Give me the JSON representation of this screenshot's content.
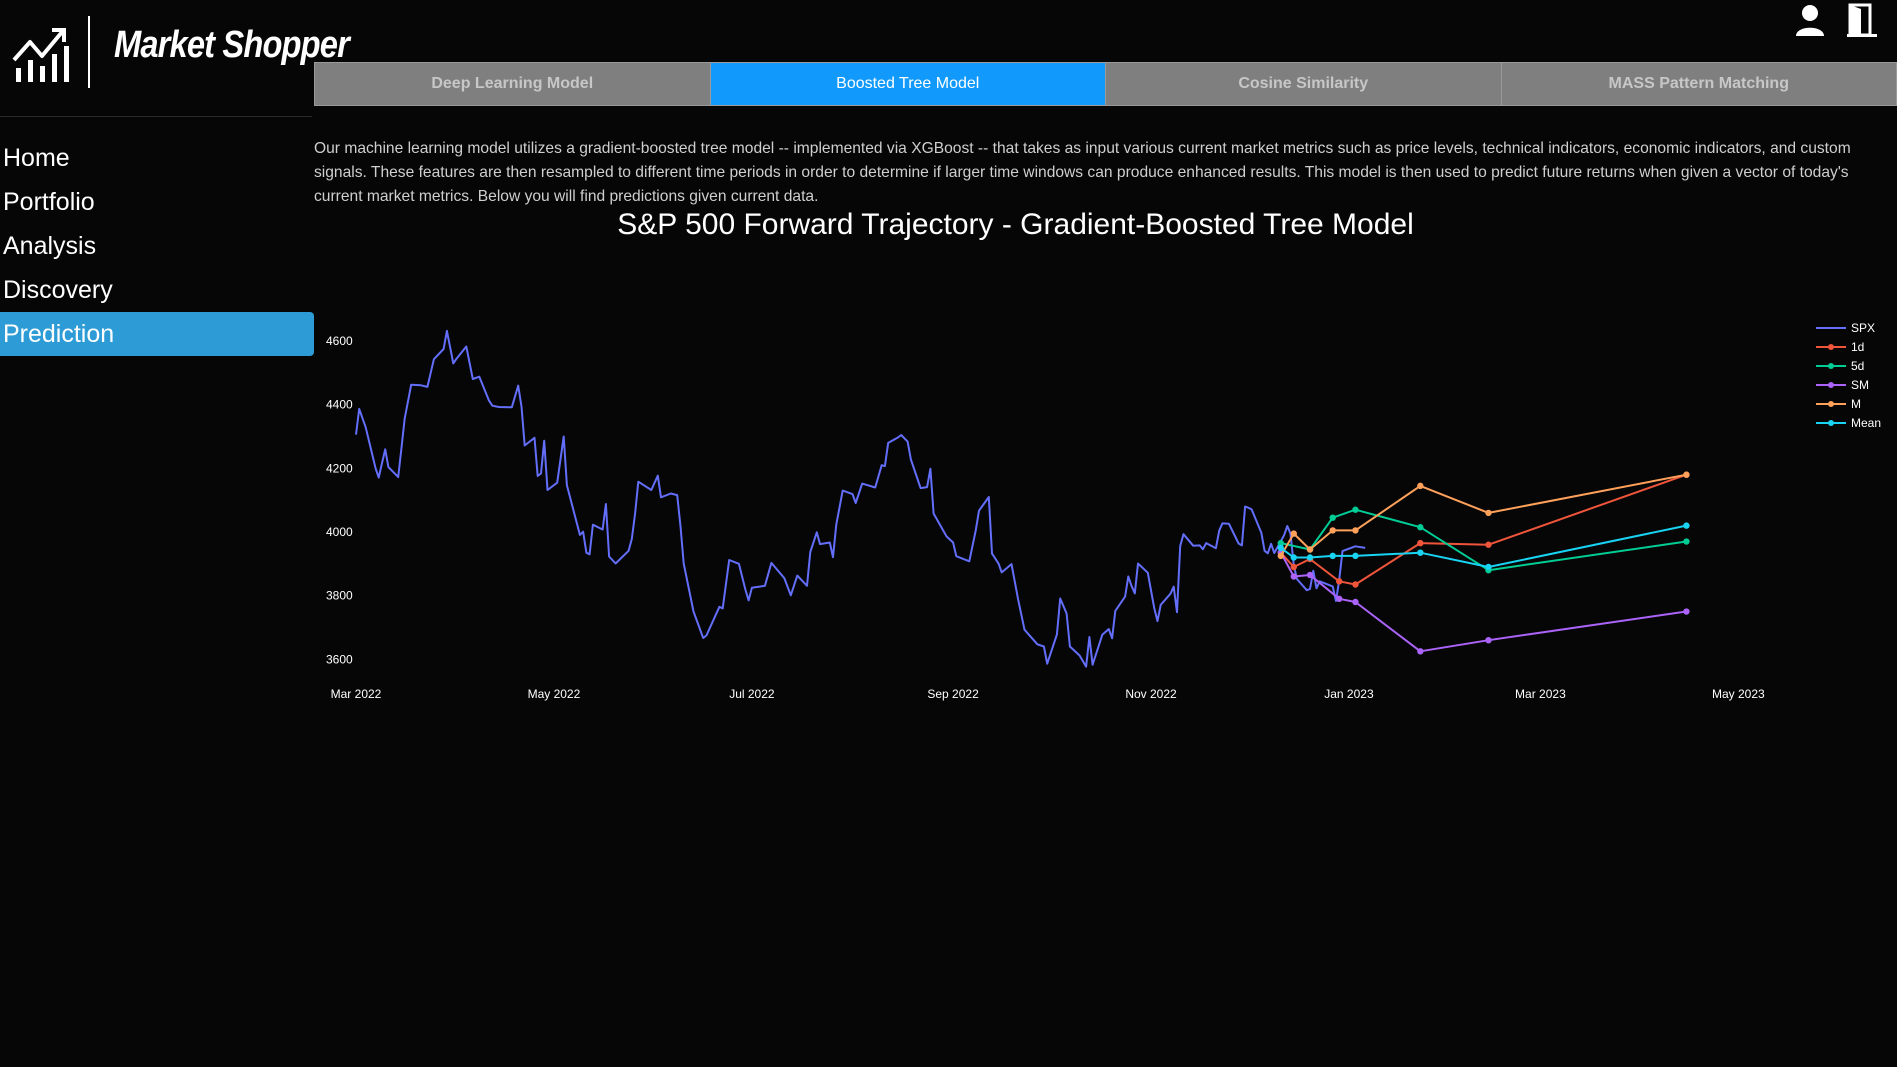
{
  "brand": {
    "name": "Market Shopper",
    "logo_icon": "growth-chart-icon"
  },
  "header_icons": [
    {
      "name": "user-icon"
    },
    {
      "name": "logout-door-icon"
    }
  ],
  "sidebar": {
    "items": [
      {
        "label": "Home",
        "active": false
      },
      {
        "label": "Portfolio",
        "active": false
      },
      {
        "label": "Analysis",
        "active": false
      },
      {
        "label": "Discovery",
        "active": false
      },
      {
        "label": "Prediction",
        "active": true
      }
    ]
  },
  "tabs": [
    {
      "label": "Deep Learning Model",
      "active": false
    },
    {
      "label": "Boosted Tree Model",
      "active": true
    },
    {
      "label": "Cosine Similarity",
      "active": false
    },
    {
      "label": "MASS Pattern Matching",
      "active": false
    }
  ],
  "description": "Our machine learning model utilizes a gradient-boosted tree model -- implemented via XGBoost -- that takes as input various current market metrics such as price levels, technical indicators, economic indicators, and custom signals. These features are then resampled to different time periods in order to determine if larger time windows can produce enhanced results. This model is then used to predict future returns when given a vector of today's current market metrics. Below you will find predictions given current data.",
  "colors": {
    "accent": "#2c9bd6",
    "tab_active": "#119afc",
    "tab_inactive": "#7f7f7f",
    "background": "#060606"
  },
  "chart_data": {
    "type": "line",
    "title": "S&P 500 Forward Trajectory - Gradient-Boosted Tree Model",
    "xlabel": "",
    "ylabel": "",
    "xlim": [
      "2022-03-01",
      "2023-05-20"
    ],
    "ylim": [
      3560,
      4660
    ],
    "x_ticks": [
      {
        "date": "2022-03-01",
        "label": "Mar 2022"
      },
      {
        "date": "2022-05-01",
        "label": "May 2022"
      },
      {
        "date": "2022-07-01",
        "label": "Jul 2022"
      },
      {
        "date": "2022-09-01",
        "label": "Sep 2022"
      },
      {
        "date": "2022-11-01",
        "label": "Nov 2022"
      },
      {
        "date": "2023-01-01",
        "label": "Jan 2023"
      },
      {
        "date": "2023-03-01",
        "label": "Mar 2023"
      },
      {
        "date": "2023-05-01",
        "label": "May 2023"
      }
    ],
    "y_ticks": [
      3600,
      3800,
      4000,
      4200,
      4400,
      4600
    ],
    "grid": false,
    "legend_position": "right",
    "series": [
      {
        "name": "SPX",
        "color": "#636efa",
        "markers": false,
        "points": [
          [
            "2022-03-01",
            4306
          ],
          [
            "2022-03-02",
            4387
          ],
          [
            "2022-03-04",
            4329
          ],
          [
            "2022-03-07",
            4201
          ],
          [
            "2022-03-08",
            4171
          ],
          [
            "2022-03-10",
            4260
          ],
          [
            "2022-03-11",
            4204
          ],
          [
            "2022-03-14",
            4173
          ],
          [
            "2022-03-15",
            4262
          ],
          [
            "2022-03-16",
            4357
          ],
          [
            "2022-03-18",
            4463
          ],
          [
            "2022-03-21",
            4461
          ],
          [
            "2022-03-23",
            4456
          ],
          [
            "2022-03-25",
            4543
          ],
          [
            "2022-03-28",
            4575
          ],
          [
            "2022-03-29",
            4632
          ],
          [
            "2022-03-31",
            4530
          ],
          [
            "2022-04-01",
            4545
          ],
          [
            "2022-04-04",
            4583
          ],
          [
            "2022-04-06",
            4481
          ],
          [
            "2022-04-08",
            4488
          ],
          [
            "2022-04-11",
            4413
          ],
          [
            "2022-04-12",
            4397
          ],
          [
            "2022-04-14",
            4393
          ],
          [
            "2022-04-18",
            4392
          ],
          [
            "2022-04-20",
            4460
          ],
          [
            "2022-04-21",
            4394
          ],
          [
            "2022-04-22",
            4272
          ],
          [
            "2022-04-25",
            4296
          ],
          [
            "2022-04-26",
            4176
          ],
          [
            "2022-04-27",
            4184
          ],
          [
            "2022-04-28",
            4287
          ],
          [
            "2022-04-29",
            4132
          ],
          [
            "2022-05-02",
            4155
          ],
          [
            "2022-05-04",
            4300
          ],
          [
            "2022-05-05",
            4147
          ],
          [
            "2022-05-09",
            3991
          ],
          [
            "2022-05-10",
            4001
          ],
          [
            "2022-05-11",
            3935
          ],
          [
            "2022-05-12",
            3930
          ],
          [
            "2022-05-13",
            4023
          ],
          [
            "2022-05-16",
            4008
          ],
          [
            "2022-05-17",
            4088
          ],
          [
            "2022-05-18",
            3923
          ],
          [
            "2022-05-20",
            3901
          ],
          [
            "2022-05-24",
            3941
          ],
          [
            "2022-05-25",
            3978
          ],
          [
            "2022-05-26",
            4058
          ],
          [
            "2022-05-27",
            4158
          ],
          [
            "2022-05-31",
            4132
          ],
          [
            "2022-06-02",
            4177
          ],
          [
            "2022-06-03",
            4109
          ],
          [
            "2022-06-06",
            4121
          ],
          [
            "2022-06-08",
            4116
          ],
          [
            "2022-06-09",
            4018
          ],
          [
            "2022-06-10",
            3901
          ],
          [
            "2022-06-13",
            3750
          ],
          [
            "2022-06-16",
            3667
          ],
          [
            "2022-06-17",
            3675
          ],
          [
            "2022-06-21",
            3765
          ],
          [
            "2022-06-22",
            3760
          ],
          [
            "2022-06-24",
            3912
          ],
          [
            "2022-06-27",
            3900
          ],
          [
            "2022-06-29",
            3819
          ],
          [
            "2022-06-30",
            3785
          ],
          [
            "2022-07-01",
            3825
          ],
          [
            "2022-07-05",
            3831
          ],
          [
            "2022-07-07",
            3903
          ],
          [
            "2022-07-11",
            3855
          ],
          [
            "2022-07-13",
            3801
          ],
          [
            "2022-07-15",
            3863
          ],
          [
            "2022-07-18",
            3831
          ],
          [
            "2022-07-19",
            3937
          ],
          [
            "2022-07-21",
            3999
          ],
          [
            "2022-07-22",
            3962
          ],
          [
            "2022-07-25",
            3967
          ],
          [
            "2022-07-26",
            3921
          ],
          [
            "2022-07-27",
            4024
          ],
          [
            "2022-07-29",
            4130
          ],
          [
            "2022-08-01",
            4119
          ],
          [
            "2022-08-02",
            4091
          ],
          [
            "2022-08-04",
            4152
          ],
          [
            "2022-08-08",
            4140
          ],
          [
            "2022-08-10",
            4210
          ],
          [
            "2022-08-11",
            4207
          ],
          [
            "2022-08-12",
            4280
          ],
          [
            "2022-08-15",
            4297
          ],
          [
            "2022-08-16",
            4305
          ],
          [
            "2022-08-18",
            4284
          ],
          [
            "2022-08-19",
            4228
          ],
          [
            "2022-08-22",
            4138
          ],
          [
            "2022-08-24",
            4141
          ],
          [
            "2022-08-25",
            4199
          ],
          [
            "2022-08-26",
            4058
          ],
          [
            "2022-08-30",
            3986
          ],
          [
            "2022-09-01",
            3967
          ],
          [
            "2022-09-02",
            3924
          ],
          [
            "2022-09-06",
            3908
          ],
          [
            "2022-09-08",
            4006
          ],
          [
            "2022-09-09",
            4067
          ],
          [
            "2022-09-12",
            4110
          ],
          [
            "2022-09-13",
            3932
          ],
          [
            "2022-09-15",
            3901
          ],
          [
            "2022-09-16",
            3873
          ],
          [
            "2022-09-19",
            3899
          ],
          [
            "2022-09-21",
            3790
          ],
          [
            "2022-09-23",
            3693
          ],
          [
            "2022-09-27",
            3647
          ],
          [
            "2022-09-29",
            3640
          ],
          [
            "2022-09-30",
            3586
          ],
          [
            "2022-10-03",
            3678
          ],
          [
            "2022-10-04",
            3791
          ],
          [
            "2022-10-06",
            3744
          ],
          [
            "2022-10-07",
            3640
          ],
          [
            "2022-10-10",
            3612
          ],
          [
            "2022-10-12",
            3577
          ],
          [
            "2022-10-13",
            3670
          ],
          [
            "2022-10-14",
            3583
          ],
          [
            "2022-10-17",
            3677
          ],
          [
            "2022-10-19",
            3695
          ],
          [
            "2022-10-20",
            3666
          ],
          [
            "2022-10-21",
            3752
          ],
          [
            "2022-10-24",
            3797
          ],
          [
            "2022-10-25",
            3860
          ],
          [
            "2022-10-26",
            3831
          ],
          [
            "2022-10-27",
            3807
          ],
          [
            "2022-10-28",
            3901
          ],
          [
            "2022-10-31",
            3872
          ],
          [
            "2022-11-02",
            3760
          ],
          [
            "2022-11-03",
            3720
          ],
          [
            "2022-11-04",
            3771
          ],
          [
            "2022-11-07",
            3806
          ],
          [
            "2022-11-08",
            3828
          ],
          [
            "2022-11-09",
            3748
          ],
          [
            "2022-11-10",
            3956
          ],
          [
            "2022-11-11",
            3993
          ],
          [
            "2022-11-14",
            3957
          ],
          [
            "2022-11-16",
            3958
          ],
          [
            "2022-11-17",
            3946
          ],
          [
            "2022-11-18",
            3965
          ],
          [
            "2022-11-21",
            3949
          ],
          [
            "2022-11-22",
            4004
          ],
          [
            "2022-11-23",
            4027
          ],
          [
            "2022-11-25",
            4026
          ],
          [
            "2022-11-28",
            3964
          ],
          [
            "2022-11-29",
            3958
          ],
          [
            "2022-11-30",
            4080
          ],
          [
            "2022-12-01",
            4076
          ],
          [
            "2022-12-02",
            4071
          ],
          [
            "2022-12-05",
            3998
          ],
          [
            "2022-12-06",
            3941
          ],
          [
            "2022-12-07",
            3933
          ],
          [
            "2022-12-08",
            3963
          ],
          [
            "2022-12-09",
            3934
          ],
          [
            "2022-12-12",
            3990
          ],
          [
            "2022-12-13",
            4019
          ],
          [
            "2022-12-14",
            3995
          ],
          [
            "2022-12-15",
            3895
          ],
          [
            "2022-12-16",
            3852
          ],
          [
            "2022-12-19",
            3817
          ],
          [
            "2022-12-20",
            3821
          ],
          [
            "2022-12-21",
            3878
          ],
          [
            "2022-12-22",
            3823
          ],
          [
            "2022-12-23",
            3845
          ],
          [
            "2022-12-27",
            3829
          ],
          [
            "2022-12-28",
            3783
          ],
          [
            "2022-12-29",
            3849
          ],
          [
            "2022-12-30",
            3940
          ],
          [
            "2023-01-03",
            3955
          ],
          [
            "2023-01-06",
            3950
          ]
        ]
      },
      {
        "name": "1d",
        "color": "#ef553b",
        "markers": true,
        "points": [
          [
            "2022-12-11",
            3935
          ],
          [
            "2022-12-15",
            3890
          ],
          [
            "2022-12-20",
            3915
          ],
          [
            "2022-12-29",
            3845
          ],
          [
            "2023-01-03",
            3835
          ],
          [
            "2023-01-23",
            3965
          ],
          [
            "2023-02-13",
            3960
          ],
          [
            "2023-04-15",
            4180
          ]
        ]
      },
      {
        "name": "5d",
        "color": "#00cc96",
        "markers": true,
        "points": [
          [
            "2022-12-11",
            3965
          ],
          [
            "2022-12-20",
            3945
          ],
          [
            "2022-12-27",
            4045
          ],
          [
            "2023-01-03",
            4070
          ],
          [
            "2023-01-23",
            4015
          ],
          [
            "2023-02-13",
            3880
          ],
          [
            "2023-04-15",
            3970
          ]
        ]
      },
      {
        "name": "SM",
        "color": "#ab63fa",
        "markers": true,
        "points": [
          [
            "2022-12-11",
            3935
          ],
          [
            "2022-12-15",
            3860
          ],
          [
            "2022-12-20",
            3865
          ],
          [
            "2022-12-29",
            3790
          ],
          [
            "2023-01-03",
            3780
          ],
          [
            "2023-01-23",
            3625
          ],
          [
            "2023-02-13",
            3660
          ],
          [
            "2023-04-15",
            3750
          ]
        ]
      },
      {
        "name": "M",
        "color": "#ffa15a",
        "markers": true,
        "points": [
          [
            "2022-12-11",
            3925
          ],
          [
            "2022-12-15",
            3995
          ],
          [
            "2022-12-20",
            3945
          ],
          [
            "2022-12-27",
            4005
          ],
          [
            "2023-01-03",
            4005
          ],
          [
            "2023-01-23",
            4145
          ],
          [
            "2023-02-13",
            4060
          ],
          [
            "2023-04-15",
            4180
          ]
        ]
      },
      {
        "name": "Mean",
        "color": "#19d3f3",
        "markers": true,
        "points": [
          [
            "2022-12-11",
            3950
          ],
          [
            "2022-12-15",
            3920
          ],
          [
            "2022-12-20",
            3920
          ],
          [
            "2022-12-27",
            3925
          ],
          [
            "2023-01-03",
            3925
          ],
          [
            "2023-01-23",
            3935
          ],
          [
            "2023-02-13",
            3890
          ],
          [
            "2023-04-15",
            4020
          ]
        ]
      }
    ]
  }
}
